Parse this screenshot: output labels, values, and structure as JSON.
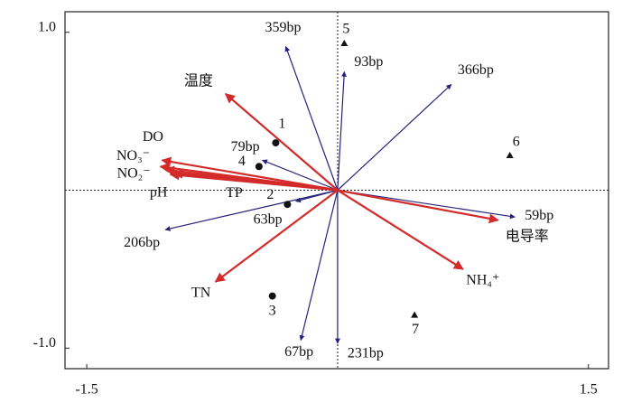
{
  "chart_data": {
    "type": "biplot",
    "xlim": [
      -1.63,
      1.62
    ],
    "ylim": [
      -1.13,
      1.13
    ],
    "xticks": [
      -1.5,
      1.5
    ],
    "yticks": [
      {
        "value": 1,
        "label": "1.0"
      },
      {
        "value": -1,
        "label": "-1.0"
      }
    ],
    "environment": {
      "color": "#d42a2a",
      "names": [
        "温度",
        "DO",
        "NO₃⁻",
        "NO₂⁻",
        "pH",
        "TP",
        "电导率",
        "NH₄⁺",
        "TN"
      ],
      "x": [
        -0.67,
        -1.05,
        -1.06,
        -1.03,
        -1.0,
        -0.98,
        0.96,
        0.75,
        -0.73
      ],
      "y": [
        0.61,
        0.19,
        0.15,
        0.13,
        0.1,
        0.11,
        -0.19,
        -0.5,
        -0.58
      ]
    },
    "species": {
      "color": "#26237a",
      "names": [
        "359bp",
        "93bp",
        "366bp",
        "79bp",
        "63bp",
        "206bp",
        "59bp",
        "67bp",
        "231bp"
      ],
      "x": [
        -0.31,
        0.04,
        0.68,
        -0.45,
        -0.25,
        -1.03,
        1.06,
        -0.22,
        0
      ],
      "y": [
        0.91,
        0.75,
        0.67,
        0.19,
        -0.07,
        -0.25,
        -0.17,
        -0.95,
        -0.97
      ]
    },
    "samples": {
      "color": "#111111",
      "names": [
        "1",
        "4",
        "2",
        "3",
        "5",
        "6",
        "7"
      ],
      "x": [
        -0.37,
        -0.47,
        -0.3,
        -0.39,
        0.04,
        1.03,
        0.46
      ],
      "y": [
        0.3,
        0.15,
        -0.09,
        -0.67,
        0.93,
        0.22,
        -0.79
      ],
      "markers": [
        "circle",
        "circle",
        "circle",
        "circle",
        "triangle",
        "triangle",
        "triangle"
      ]
    }
  }
}
